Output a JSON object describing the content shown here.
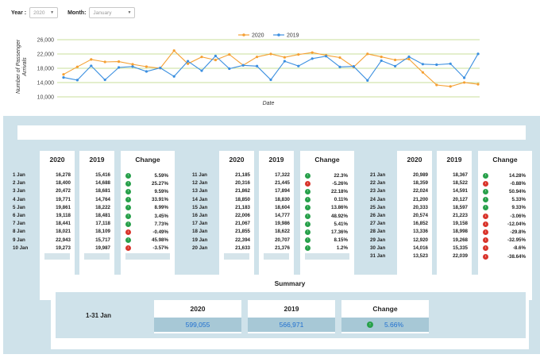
{
  "filters": {
    "year_label": "Year :",
    "year_value": "2020",
    "month_label": "Month:",
    "month_value": "January"
  },
  "chart_data": {
    "type": "line",
    "xlabel": "Date",
    "ylabel": "Number of Passenger Arrivals",
    "ylim": [
      10000,
      26000
    ],
    "yticks": [
      10000,
      14000,
      18000,
      22000,
      26000
    ],
    "ytick_labels": [
      "10,000",
      "14,000",
      "18,000",
      "22,000",
      "26,000"
    ],
    "x": [
      1,
      2,
      3,
      4,
      5,
      6,
      7,
      8,
      9,
      10,
      11,
      12,
      13,
      14,
      15,
      16,
      17,
      18,
      19,
      20,
      21,
      22,
      23,
      24,
      25,
      26,
      27,
      28,
      29,
      30,
      31
    ],
    "legend_position": "top",
    "series": [
      {
        "name": "2020",
        "color": "#f5a033",
        "values": [
          16278,
          18400,
          20472,
          19771,
          19861,
          19118,
          18441,
          18021,
          22943,
          19273,
          21185,
          20316,
          21862,
          18850,
          21183,
          22006,
          21067,
          21855,
          22394,
          21633,
          20989,
          18359,
          22024,
          21200,
          20333,
          20574,
          16852,
          13336,
          12920,
          14016,
          13523
        ]
      },
      {
        "name": "2019",
        "color": "#3b8fe0",
        "values": [
          15416,
          14688,
          18681,
          14764,
          18222,
          18481,
          17118,
          18109,
          15717,
          19987,
          17322,
          21445,
          17894,
          18830,
          18604,
          14777,
          19986,
          18622,
          20707,
          21376,
          18367,
          18522,
          14591,
          20127,
          18597,
          21223,
          19158,
          18998,
          19268,
          15335,
          22039
        ]
      }
    ]
  },
  "columns": {
    "y2020": "2020",
    "y2019": "2019",
    "change": "Change"
  },
  "groups": [
    {
      "rows": [
        {
          "date": "1 Jan",
          "v2020": "16,278",
          "v2019": "15,416",
          "change": "5.59%",
          "dir": "up"
        },
        {
          "date": "2 Jan",
          "v2020": "18,400",
          "v2019": "14,688",
          "change": "25.27%",
          "dir": "up"
        },
        {
          "date": "3 Jan",
          "v2020": "20,472",
          "v2019": "18,681",
          "change": "9.59%",
          "dir": "up"
        },
        {
          "date": "4 Jan",
          "v2020": "19,771",
          "v2019": "14,764",
          "change": "33.91%",
          "dir": "up"
        },
        {
          "date": "5 Jan",
          "v2020": "19,861",
          "v2019": "18,222",
          "change": "8.99%",
          "dir": "up"
        },
        {
          "date": "6 Jan",
          "v2020": "19,118",
          "v2019": "18,481",
          "change": "3.45%",
          "dir": "up"
        },
        {
          "date": "7 Jan",
          "v2020": "18,441",
          "v2019": "17,118",
          "change": "7.73%",
          "dir": "up"
        },
        {
          "date": "8 Jan",
          "v2020": "18,021",
          "v2019": "18,109",
          "change": "-0.49%",
          "dir": "down"
        },
        {
          "date": "9 Jan",
          "v2020": "22,943",
          "v2019": "15,717",
          "change": "45.98%",
          "dir": "up"
        },
        {
          "date": "10 Jan",
          "v2020": "19,273",
          "v2019": "19,987",
          "change": "-3.57%",
          "dir": "down"
        }
      ]
    },
    {
      "rows": [
        {
          "date": "11 Jan",
          "v2020": "21,185",
          "v2019": "17,322",
          "change": "22.3%",
          "dir": "up"
        },
        {
          "date": "12 Jan",
          "v2020": "20,316",
          "v2019": "21,445",
          "change": "-5.26%",
          "dir": "down"
        },
        {
          "date": "13 Jan",
          "v2020": "21,862",
          "v2019": "17,894",
          "change": "22.18%",
          "dir": "up"
        },
        {
          "date": "14 Jan",
          "v2020": "18,850",
          "v2019": "18,830",
          "change": "0.11%",
          "dir": "up"
        },
        {
          "date": "15 Jan",
          "v2020": "21,183",
          "v2019": "18,604",
          "change": "13.86%",
          "dir": "up"
        },
        {
          "date": "16 Jan",
          "v2020": "22,006",
          "v2019": "14,777",
          "change": "48.92%",
          "dir": "up"
        },
        {
          "date": "17 Jan",
          "v2020": "21,067",
          "v2019": "19,986",
          "change": "5.41%",
          "dir": "up"
        },
        {
          "date": "18 Jan",
          "v2020": "21,855",
          "v2019": "18,622",
          "change": "17.36%",
          "dir": "up"
        },
        {
          "date": "19 Jan",
          "v2020": "22,394",
          "v2019": "20,707",
          "change": "8.15%",
          "dir": "up"
        },
        {
          "date": "20 Jan",
          "v2020": "21,633",
          "v2019": "21,376",
          "change": "1.2%",
          "dir": "up"
        }
      ]
    },
    {
      "rows": [
        {
          "date": "21 Jan",
          "v2020": "20,989",
          "v2019": "18,367",
          "change": "14.28%",
          "dir": "up"
        },
        {
          "date": "22 Jan",
          "v2020": "18,359",
          "v2019": "18,522",
          "change": "-0.88%",
          "dir": "down"
        },
        {
          "date": "23 Jan",
          "v2020": "22,024",
          "v2019": "14,591",
          "change": "50.94%",
          "dir": "up"
        },
        {
          "date": "24 Jan",
          "v2020": "21,200",
          "v2019": "20,127",
          "change": "5.33%",
          "dir": "up"
        },
        {
          "date": "25 Jan",
          "v2020": "20,333",
          "v2019": "18,597",
          "change": "9.33%",
          "dir": "up"
        },
        {
          "date": "26 Jan",
          "v2020": "20,574",
          "v2019": "21,223",
          "change": "-3.06%",
          "dir": "down"
        },
        {
          "date": "27 Jan",
          "v2020": "16,852",
          "v2019": "19,158",
          "change": "-12.04%",
          "dir": "down"
        },
        {
          "date": "28 Jan",
          "v2020": "13,336",
          "v2019": "18,998",
          "change": "-29.8%",
          "dir": "down"
        },
        {
          "date": "29 Jan",
          "v2020": "12,920",
          "v2019": "19,268",
          "change": "-32.95%",
          "dir": "down"
        },
        {
          "date": "30 Jan",
          "v2020": "14,016",
          "v2019": "15,335",
          "change": "-8.6%",
          "dir": "down"
        },
        {
          "date": "31 Jan",
          "v2020": "13,523",
          "v2019": "22,039",
          "change": "-38.64%",
          "dir": "down"
        }
      ]
    }
  ],
  "summary": {
    "title": "Summary",
    "range": "1-31 Jan",
    "v2020": "599,055",
    "v2019": "566,971",
    "change": "5.66%",
    "change_dir": "up"
  },
  "icons": {
    "up": "arrow-up-icon",
    "down": "arrow-down-icon"
  }
}
